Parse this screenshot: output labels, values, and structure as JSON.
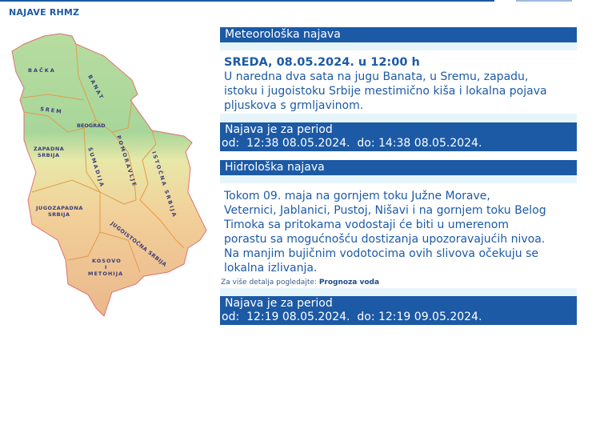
{
  "page_title": "NAJAVE RHMZ",
  "map": {
    "regions": [
      "BAČKA",
      "BANAT",
      "SREM",
      "BEOGRAD",
      "ZAPADNA",
      "SRBIJA",
      "ŠUMADIJA",
      "POMORAVLJE",
      "ISTOČNA SRBIJA",
      "JUGOZAPADNA",
      "SRBIJA",
      "JUGOISTOČNA SRBIJA",
      "KOSOVO",
      "I",
      "METOHIJA"
    ]
  },
  "meteo": {
    "header": "Meteorološka najava",
    "date_line": "SREDA, 08.05.2024. u 12:00 h",
    "lines": [
      "U naredna dva sata na jugu Banata, u Sremu, zapadu,",
      "istoku i jugoistoku Srbije mestimično kiša i lokalna pojava",
      "pljuskova s grmljavinom."
    ],
    "period_label": "Najava je za period",
    "period": "od:  12:38 08.05.2024.  do: 14:38 08.05.2024."
  },
  "hydro": {
    "header": "Hidrološka najava",
    "lines": [
      "Tokom 09. maja na gornjem toku Južne Morave,",
      "Veternici, Jablanici, Pustoj, Nišavi i na gornjem toku Belog",
      "Timoka sa pritokama vodostaji će biti u umerenom",
      "porastu sa mogućnošću dostizanja upozoravajućih nivoa.",
      "Na manjim bujičnim vodotocima ovih slivova očekuju se",
      "lokalna izlivanja."
    ],
    "more_label": "Za više detalja pogledajte:",
    "more_link": "Prognoza voda",
    "period_label": "Najava je za period",
    "period": "od:  12:19 08.05.2024.  do: 12:19 09.05.2024."
  },
  "colors": {
    "brand_blue": "#1c5aa6",
    "strip": "#e6f5fa"
  }
}
